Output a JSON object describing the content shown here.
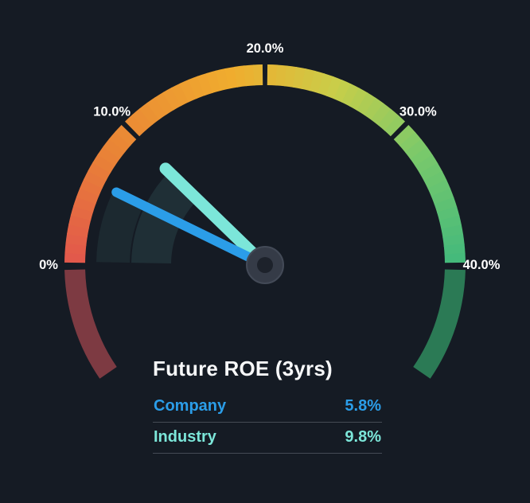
{
  "chart_data": {
    "type": "gauge",
    "title": "Future ROE (3yrs)",
    "unit": "%",
    "min": 0,
    "max": 40,
    "start_angle_deg": 180,
    "end_angle_deg": 0,
    "overflow_start_deg": 214.5,
    "overflow_end_deg": -34.5,
    "ticks": [
      {
        "value": 0,
        "label": "0%"
      },
      {
        "value": 10,
        "label": "10.0%"
      },
      {
        "value": 20,
        "label": "20.0%"
      },
      {
        "value": 30,
        "label": "30.0%"
      },
      {
        "value": 40,
        "label": "40.0%"
      }
    ],
    "series": [
      {
        "name": "Company",
        "value": 5.8,
        "label": "5.8%",
        "color": "#2b9de8",
        "needle_length": 208,
        "needle_width": 12
      },
      {
        "name": "Industry",
        "value": 9.8,
        "label": "9.8%",
        "color": "#7ce6d9",
        "needle_length": 174,
        "needle_width": 15
      }
    ],
    "band_gradient": [
      {
        "t": 0.0,
        "color": "#e2574c"
      },
      {
        "t": 0.2,
        "color": "#e98336"
      },
      {
        "t": 0.45,
        "color": "#f0ad2e"
      },
      {
        "t": 0.62,
        "color": "#c9ce49"
      },
      {
        "t": 0.8,
        "color": "#79c96b"
      },
      {
        "t": 1.0,
        "color": "#43b97c"
      }
    ],
    "below_min_color": "#7d3a42",
    "above_max_color": "#2b7a55",
    "colors": {
      "background": "#151b24",
      "tick_label": "#ffffff",
      "divider": "#454b55",
      "hub_outer": "#353b47",
      "hub_ring": "#434a57",
      "hub_inner": "#1d222b",
      "wake_rgb": "125,230,219"
    }
  }
}
